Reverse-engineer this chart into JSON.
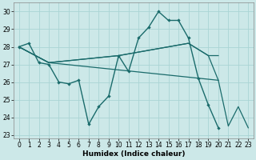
{
  "xlabel": "Humidex (Indice chaleur)",
  "bg_color": "#cce8e8",
  "grid_color": "#aad4d4",
  "line_color": "#1a6b6b",
  "xlim": [
    -0.5,
    23.5
  ],
  "ylim": [
    22.8,
    30.5
  ],
  "yticks": [
    23,
    24,
    25,
    26,
    27,
    28,
    29,
    30
  ],
  "xticks": [
    0,
    1,
    2,
    3,
    4,
    5,
    6,
    7,
    8,
    9,
    10,
    11,
    12,
    13,
    14,
    15,
    16,
    17,
    18,
    19,
    20,
    21,
    22,
    23
  ],
  "line1_x": [
    0,
    1,
    2,
    3,
    4,
    5,
    6,
    7,
    8,
    9,
    10,
    11,
    12,
    13,
    14,
    15,
    16,
    17,
    18,
    19,
    20
  ],
  "line1_y": [
    28.0,
    28.2,
    27.1,
    27.0,
    26.0,
    25.9,
    26.1,
    23.6,
    24.6,
    25.2,
    27.5,
    26.6,
    28.5,
    29.1,
    30.0,
    29.5,
    29.5,
    28.5,
    26.2,
    24.7,
    23.4
  ],
  "line2_x": [
    0,
    3,
    10,
    17,
    19,
    20
  ],
  "line2_y": [
    28.0,
    27.1,
    27.5,
    28.2,
    27.5,
    27.5
  ],
  "line3_x": [
    0,
    3,
    10,
    17,
    19,
    20
  ],
  "line3_y": [
    28.0,
    27.1,
    27.5,
    28.2,
    27.5,
    26.1
  ],
  "line4_x": [
    0,
    3,
    20,
    21,
    22,
    23
  ],
  "line4_y": [
    28.0,
    27.1,
    26.1,
    23.5,
    24.6,
    23.4
  ]
}
